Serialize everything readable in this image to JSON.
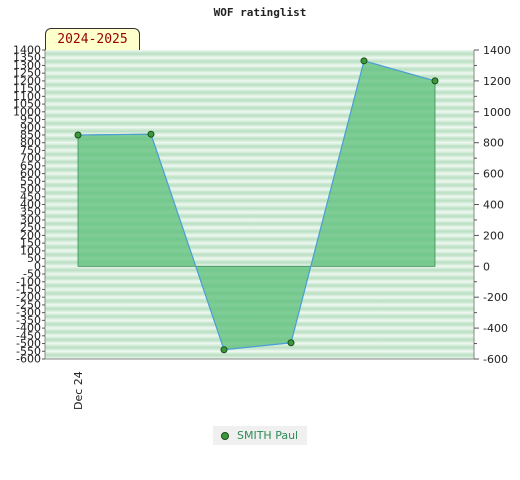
{
  "header": {
    "title": "WOF ratinglist"
  },
  "season": {
    "label": "2024-2025"
  },
  "chart_data": {
    "type": "area",
    "title": "WOF ratinglist",
    "xlabel": "",
    "ylabel": "",
    "x_tick_labels": [
      "Dec 24"
    ],
    "ylim": [
      -600,
      1400
    ],
    "left_ticks_step": 50,
    "right_ticks_step": 200,
    "grid": true,
    "legend": "bottom-center",
    "series": [
      {
        "name": "SMITH Paul",
        "values": [
          850,
          855,
          -540,
          -495,
          1330,
          1200
        ]
      }
    ],
    "colors": {
      "fill": "#5bbf7a",
      "fill_opacity": 0.75,
      "line": "#4a9fd8",
      "marker": "#3a9a3a",
      "band_dark": "#b9dfc2",
      "band_light": "#eef8f0"
    }
  },
  "legend": {
    "items": [
      {
        "label": "SMITH Paul"
      }
    ]
  }
}
